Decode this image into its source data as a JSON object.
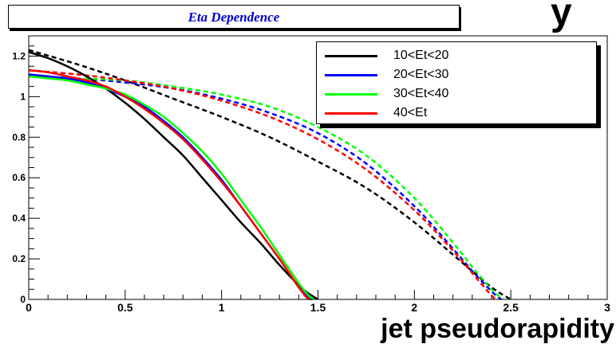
{
  "title": "Eta Dependence",
  "top_glyph": "y",
  "chart_data": {
    "type": "line",
    "title": "Eta Dependence",
    "xlabel": "jet pseudorapidity",
    "ylabel": "",
    "xlim": [
      0,
      3
    ],
    "ylim": [
      0,
      1.3
    ],
    "x_ticks": [
      "0",
      "0.5",
      "1",
      "1.5",
      "2",
      "2.5",
      "3"
    ],
    "y_ticks": [
      "0",
      "0.2",
      "0.4",
      "0.6",
      "0.8",
      "1",
      "1.2"
    ],
    "legend_position": "top-right",
    "grid": false,
    "colors": {
      "black": "#000000",
      "blue": "#0000ff",
      "green": "#00ff00",
      "red": "#ff0000"
    },
    "series": [
      {
        "name": "10<Et<20",
        "color": "#000000",
        "style": "solid",
        "x": [
          0,
          0.1,
          0.2,
          0.3,
          0.4,
          0.5,
          0.6,
          0.7,
          0.8,
          0.9,
          1.0,
          1.1,
          1.2,
          1.3,
          1.4,
          1.45,
          1.5
        ],
        "y": [
          1.22,
          1.19,
          1.15,
          1.1,
          1.04,
          0.97,
          0.89,
          0.8,
          0.71,
          0.6,
          0.49,
          0.38,
          0.28,
          0.17,
          0.07,
          0.03,
          0.0
        ]
      },
      {
        "name": "20<Et<30",
        "color": "#0000ff",
        "style": "solid",
        "x": [
          0,
          0.1,
          0.2,
          0.3,
          0.4,
          0.5,
          0.6,
          0.7,
          0.8,
          0.9,
          1.0,
          1.1,
          1.2,
          1.3,
          1.35,
          1.4,
          1.45,
          1.47
        ],
        "y": [
          1.11,
          1.1,
          1.09,
          1.07,
          1.04,
          1.0,
          0.95,
          0.88,
          0.8,
          0.7,
          0.59,
          0.46,
          0.33,
          0.2,
          0.13,
          0.06,
          0.01,
          0.0
        ]
      },
      {
        "name": "30<Et<40",
        "color": "#00ff00",
        "style": "solid",
        "x": [
          0,
          0.1,
          0.2,
          0.3,
          0.4,
          0.5,
          0.6,
          0.7,
          0.8,
          0.9,
          1.0,
          1.1,
          1.2,
          1.3,
          1.35,
          1.4,
          1.45,
          1.48
        ],
        "y": [
          1.1,
          1.09,
          1.08,
          1.06,
          1.04,
          1.01,
          0.96,
          0.9,
          0.82,
          0.73,
          0.62,
          0.49,
          0.36,
          0.22,
          0.15,
          0.08,
          0.02,
          0.0
        ]
      },
      {
        "name": "40<Et",
        "color": "#ff0000",
        "style": "solid",
        "x": [
          0,
          0.1,
          0.2,
          0.3,
          0.4,
          0.5,
          0.6,
          0.7,
          0.8,
          0.9,
          1.0,
          1.1,
          1.2,
          1.3,
          1.35,
          1.4,
          1.44,
          1.46
        ],
        "y": [
          1.13,
          1.12,
          1.1,
          1.08,
          1.05,
          1.0,
          0.94,
          0.87,
          0.79,
          0.69,
          0.58,
          0.46,
          0.33,
          0.2,
          0.13,
          0.06,
          0.01,
          0.0
        ]
      },
      {
        "name": "",
        "color": "#000000",
        "style": "dashed",
        "x": [
          0,
          0.25,
          0.5,
          0.75,
          1.0,
          1.25,
          1.5,
          1.75,
          2.0,
          2.25,
          2.4,
          2.5
        ],
        "y": [
          1.23,
          1.16,
          1.08,
          0.99,
          0.9,
          0.8,
          0.68,
          0.55,
          0.38,
          0.18,
          0.06,
          0.0
        ]
      },
      {
        "name": "",
        "color": "#0000ff",
        "style": "dashed",
        "x": [
          0,
          0.25,
          0.5,
          0.75,
          1.0,
          1.25,
          1.5,
          1.75,
          2.0,
          2.2,
          2.3,
          2.4,
          2.45
        ],
        "y": [
          1.1,
          1.09,
          1.07,
          1.04,
          0.99,
          0.92,
          0.82,
          0.67,
          0.46,
          0.25,
          0.14,
          0.04,
          0.0
        ]
      },
      {
        "name": "",
        "color": "#00ff00",
        "style": "dashed",
        "x": [
          0,
          0.25,
          0.5,
          0.75,
          1.0,
          1.25,
          1.5,
          1.75,
          2.0,
          2.2,
          2.3,
          2.4,
          2.46
        ],
        "y": [
          1.1,
          1.09,
          1.08,
          1.05,
          1.01,
          0.95,
          0.85,
          0.71,
          0.5,
          0.28,
          0.16,
          0.05,
          0.0
        ]
      },
      {
        "name": "",
        "color": "#ff0000",
        "style": "dashed",
        "x": [
          0,
          0.25,
          0.5,
          0.75,
          1.0,
          1.25,
          1.5,
          1.75,
          2.0,
          2.2,
          2.3,
          2.38,
          2.42
        ],
        "y": [
          1.13,
          1.11,
          1.08,
          1.04,
          0.98,
          0.9,
          0.79,
          0.64,
          0.44,
          0.24,
          0.13,
          0.04,
          0.0
        ]
      }
    ]
  }
}
